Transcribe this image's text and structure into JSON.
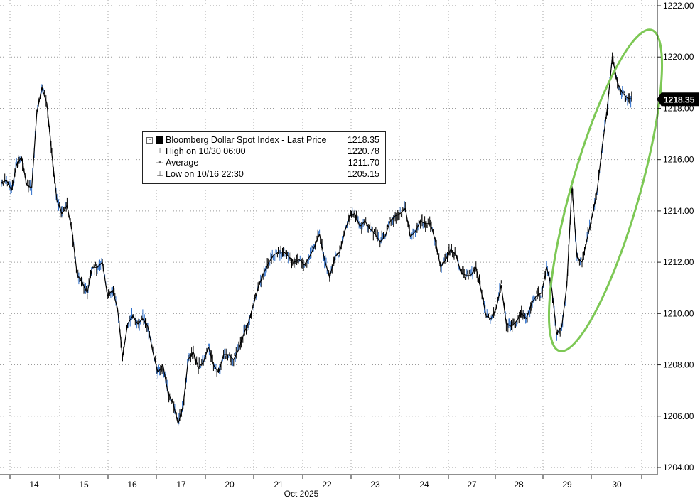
{
  "chart_data": {
    "type": "line",
    "x_axis": {
      "tick_labels": [
        "14",
        "15",
        "16",
        "17",
        "20",
        "21",
        "22",
        "23",
        "24",
        "27",
        "28",
        "29",
        "30"
      ],
      "month_label": "Oct 2025"
    },
    "y_axis": {
      "tick_labels": [
        "1204.00",
        "1206.00",
        "1208.00",
        "1210.00",
        "1212.00",
        "1214.00",
        "1216.00",
        "1218.00",
        "1220.00",
        "1222.00"
      ],
      "ylim": [
        1204,
        1222
      ],
      "side": "right"
    },
    "grid": "dotted",
    "series": [
      {
        "name": "Bloomberg Dollar Spot Index - Last Price",
        "color": "#000000",
        "accent_color": "#2f6fc9",
        "values": [
          1215.1,
          1215.2,
          1214.8,
          1215.8,
          1216.1,
          1215.0,
          1214.9,
          1217.8,
          1218.8,
          1218.2,
          1216.2,
          1214.4,
          1213.9,
          1214.2,
          1213.2,
          1211.5,
          1211.2,
          1210.8,
          1211.8,
          1211.8,
          1212.0,
          1210.7,
          1210.9,
          1210.2,
          1208.3,
          1209.6,
          1209.9,
          1209.6,
          1209.8,
          1209.5,
          1208.5,
          1207.7,
          1208.0,
          1206.9,
          1206.5,
          1205.7,
          1206.4,
          1208.2,
          1208.5,
          1207.9,
          1208.1,
          1208.7,
          1208.0,
          1207.7,
          1208.4,
          1208.4,
          1208.2,
          1208.6,
          1209.2,
          1209.7,
          1210.4,
          1211.1,
          1211.6,
          1212.0,
          1212.3,
          1212.4,
          1212.4,
          1212.2,
          1212.0,
          1212.1,
          1211.9,
          1212.2,
          1212.6,
          1213.1,
          1212.1,
          1211.4,
          1212.2,
          1212.4,
          1213.2,
          1213.8,
          1213.9,
          1213.4,
          1213.6,
          1213.3,
          1213.1,
          1212.8,
          1213.0,
          1213.6,
          1213.8,
          1213.9,
          1214.1,
          1213.0,
          1213.2,
          1213.6,
          1213.5,
          1213.5,
          1212.8,
          1211.8,
          1212.1,
          1212.5,
          1212.3,
          1211.6,
          1211.5,
          1211.5,
          1211.8,
          1210.9,
          1209.9,
          1209.8,
          1210.2,
          1211.1,
          1209.6,
          1209.5,
          1209.7,
          1210.0,
          1209.8,
          1210.4,
          1210.7,
          1210.8,
          1211.8,
          1211.0,
          1209.2,
          1209.5,
          1211.1,
          1215.0,
          1212.2,
          1212.0,
          1212.9,
          1213.8,
          1214.8,
          1216.5,
          1218.0,
          1220.0,
          1219.0,
          1218.6,
          1218.4,
          1218.35
        ]
      }
    ],
    "legend": {
      "placement": "upper-center",
      "title": "Bloomberg Dollar Spot Index - Last Price",
      "title_value": "1218.35",
      "rows": [
        {
          "label": "High on 10/30 06:00",
          "value": "1220.78"
        },
        {
          "label": "Average",
          "value": "1211.70"
        },
        {
          "label": "Low on 10/16 22:30",
          "value": "1205.15"
        }
      ]
    },
    "last_price_tag": "1218.35",
    "annotation": {
      "shape": "ellipse",
      "color": "#7dc855",
      "around": "29–30 Oct rally"
    }
  }
}
